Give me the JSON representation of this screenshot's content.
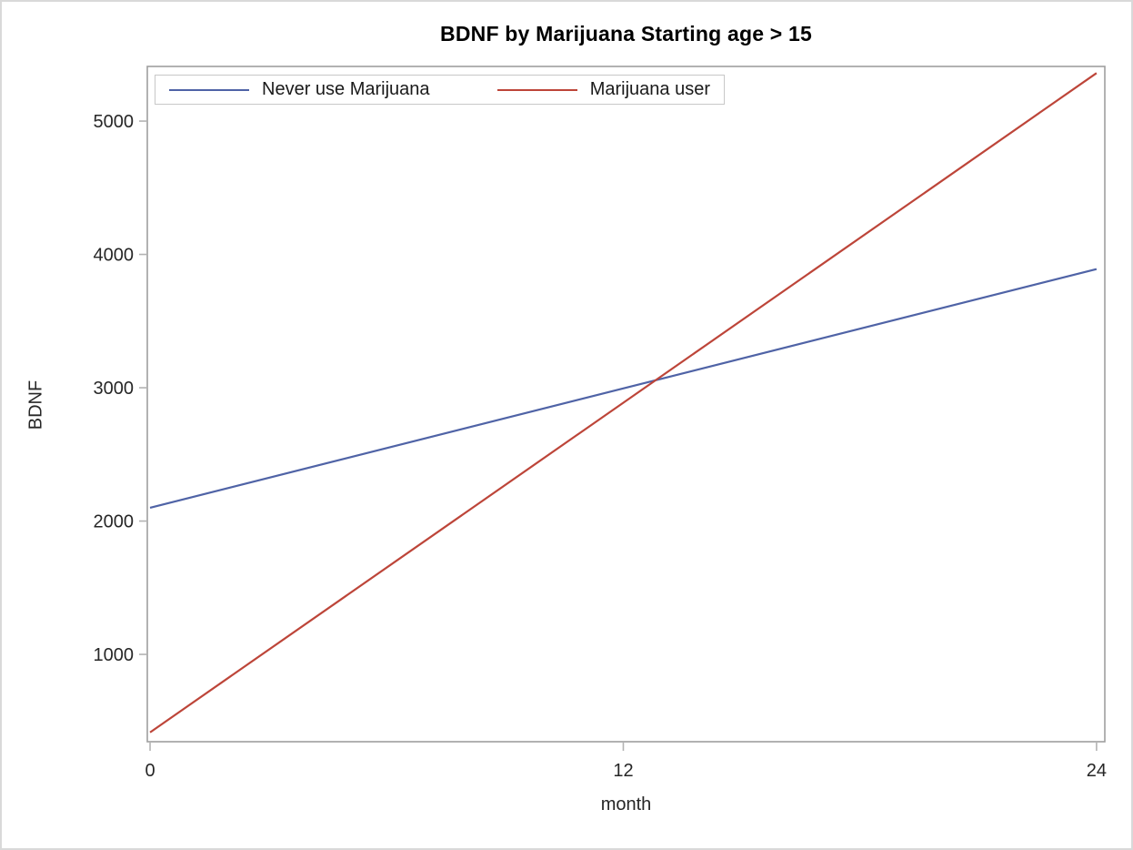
{
  "figure": {
    "border_color": "#d9d9d9",
    "background": "#ffffff"
  },
  "chart_data": {
    "type": "line",
    "title": "BDNF by Marijuana Starting age > 15",
    "xlabel": "month",
    "ylabel": "BDNF",
    "x_ticks": [
      0,
      12,
      24
    ],
    "y_ticks": [
      1000,
      2000,
      3000,
      4000,
      5000
    ],
    "xlim": [
      -0.07,
      24.21
    ],
    "ylim": [
      345,
      5410
    ],
    "grid": false,
    "legend_position": "inside top-left",
    "series": [
      {
        "name": "Never use Marijuana",
        "color": "#4f63a6",
        "x": [
          0,
          24
        ],
        "y": [
          2100,
          3890
        ]
      },
      {
        "name": "Marijuana user",
        "color": "#bd4539",
        "x": [
          0,
          24
        ],
        "y": [
          415,
          5360
        ]
      }
    ],
    "annotations": {
      "lines_cross_at": {
        "month": 12.8,
        "bdnf": 3050
      }
    },
    "colors": {
      "wall_border": "#9f9f9f",
      "tick_mark": "#b3b3b3",
      "tick_text": "#262626",
      "legend_border": "#c8c8c8",
      "title_text": "#000000"
    }
  }
}
